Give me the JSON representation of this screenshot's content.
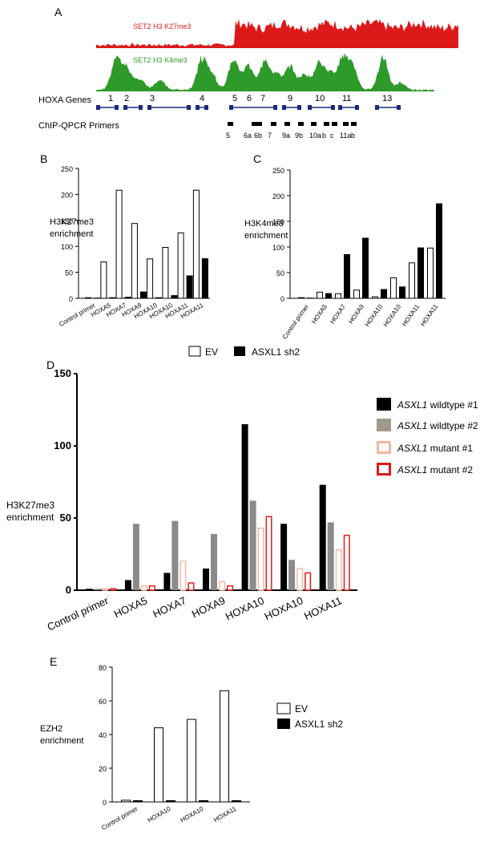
{
  "panel_a": {
    "letter": "A",
    "track_red_label": "SET2 H3 K27me3",
    "track_green_label": "SET2 H3 K4me3",
    "genes_label": "HOXA Genes",
    "gene_numbers": [
      "1",
      "2",
      "3",
      "4",
      "5",
      "6",
      "7",
      "9",
      "10",
      "11",
      "13"
    ],
    "primers_label": "ChIP-QPCR Primers",
    "primer_names": [
      "5",
      "6a",
      "6b",
      "7",
      "9a",
      "9b",
      "10a",
      "b",
      "c",
      "11a",
      "b"
    ],
    "colors": {
      "red": "#dd1a1a",
      "green": "#2e9a2a",
      "gene": "#1c2a7a"
    }
  },
  "panel_b_letter": "B",
  "panel_c_letter": "C",
  "panel_d_letter": "D",
  "panel_e_letter": "E",
  "legend_bc": {
    "ev": "EV",
    "sh2": "ASXL1 sh2"
  },
  "legend_d": [
    {
      "italic": "ASXL1",
      "rest": " wildtype #1",
      "color": "#000000",
      "style": "solid"
    },
    {
      "italic": "ASXL1",
      "rest": " wildtype #2",
      "color": "#a09a8c",
      "style": "solid"
    },
    {
      "italic": "ASXL1",
      "rest": " mutant #1",
      "color": "#f2b8a0",
      "style": "outline"
    },
    {
      "italic": "ASXL1",
      "rest": " mutant #2",
      "color": "#dd1a1a",
      "style": "outline"
    }
  ],
  "legend_e": {
    "ev": "EV",
    "sh2": "ASXL1 sh2"
  },
  "chart_data": [
    {
      "panel": "B",
      "type": "bar",
      "ylabel": "H3K27me3 enrichment",
      "ylim": [
        0,
        250
      ],
      "yticks": [
        0,
        50,
        100,
        150,
        200,
        250
      ],
      "categories": [
        "Control primer",
        "HOXA5",
        "HOXA7",
        "HOXA9",
        "HOXA10",
        "HOXA10",
        "HOXA11",
        "HOXA11"
      ],
      "series": [
        {
          "name": "EV",
          "values": [
            1,
            70,
            208,
            144,
            76,
            98,
            126,
            208
          ]
        },
        {
          "name": "ASXL1 sh2",
          "values": [
            1,
            2,
            3,
            13,
            2,
            6,
            44,
            77
          ]
        }
      ]
    },
    {
      "panel": "C",
      "type": "bar",
      "ylabel": "H3K4me3 enrichment",
      "ylim": [
        0,
        250
      ],
      "yticks": [
        0,
        50,
        100,
        150,
        200,
        250
      ],
      "categories": [
        "Control primer",
        "HOXA5",
        "HOXA7",
        "HOXA9",
        "HOXA10",
        "HOXA10",
        "HOXA11",
        "HOXA11"
      ],
      "series": [
        {
          "name": "EV",
          "values": [
            1,
            12,
            9,
            16,
            3,
            40,
            69,
            98
          ]
        },
        {
          "name": "ASXL1 sh2",
          "values": [
            1,
            10,
            86,
            118,
            18,
            23,
            99,
            185
          ]
        }
      ]
    },
    {
      "panel": "D",
      "type": "bar",
      "ylabel": "H3K27me3 enrichment",
      "ylim": [
        0,
        150
      ],
      "yticks": [
        0,
        50,
        100,
        150
      ],
      "categories": [
        "Control primer",
        "HOXA5",
        "HOXA7",
        "HOXA9",
        "HOXA10",
        "HOXA10",
        "HOXA11"
      ],
      "series": [
        {
          "name": "ASXL1 wildtype #1",
          "values": [
            1,
            7,
            12,
            15,
            115,
            46,
            73
          ]
        },
        {
          "name": "ASXL1 wildtype #2",
          "values": [
            1,
            46,
            48,
            39,
            62,
            21,
            47
          ]
        },
        {
          "name": "ASXL1 mutant #1",
          "values": [
            1,
            3,
            20,
            6,
            43,
            15,
            28
          ]
        },
        {
          "name": "ASXL1 mutant #2",
          "values": [
            1,
            3,
            5,
            3,
            51,
            12,
            38
          ]
        }
      ]
    },
    {
      "panel": "E",
      "type": "bar",
      "ylabel": "EZH2 enrichment",
      "ylim": [
        0,
        80
      ],
      "yticks": [
        0,
        20,
        40,
        60,
        80
      ],
      "categories": [
        "Control primer",
        "HOXA10",
        "HOXA10",
        "HOXA11"
      ],
      "series": [
        {
          "name": "EV",
          "values": [
            1,
            44,
            49,
            66
          ]
        },
        {
          "name": "ASXL1 sh2",
          "values": [
            1,
            1,
            1,
            1
          ]
        }
      ]
    }
  ]
}
